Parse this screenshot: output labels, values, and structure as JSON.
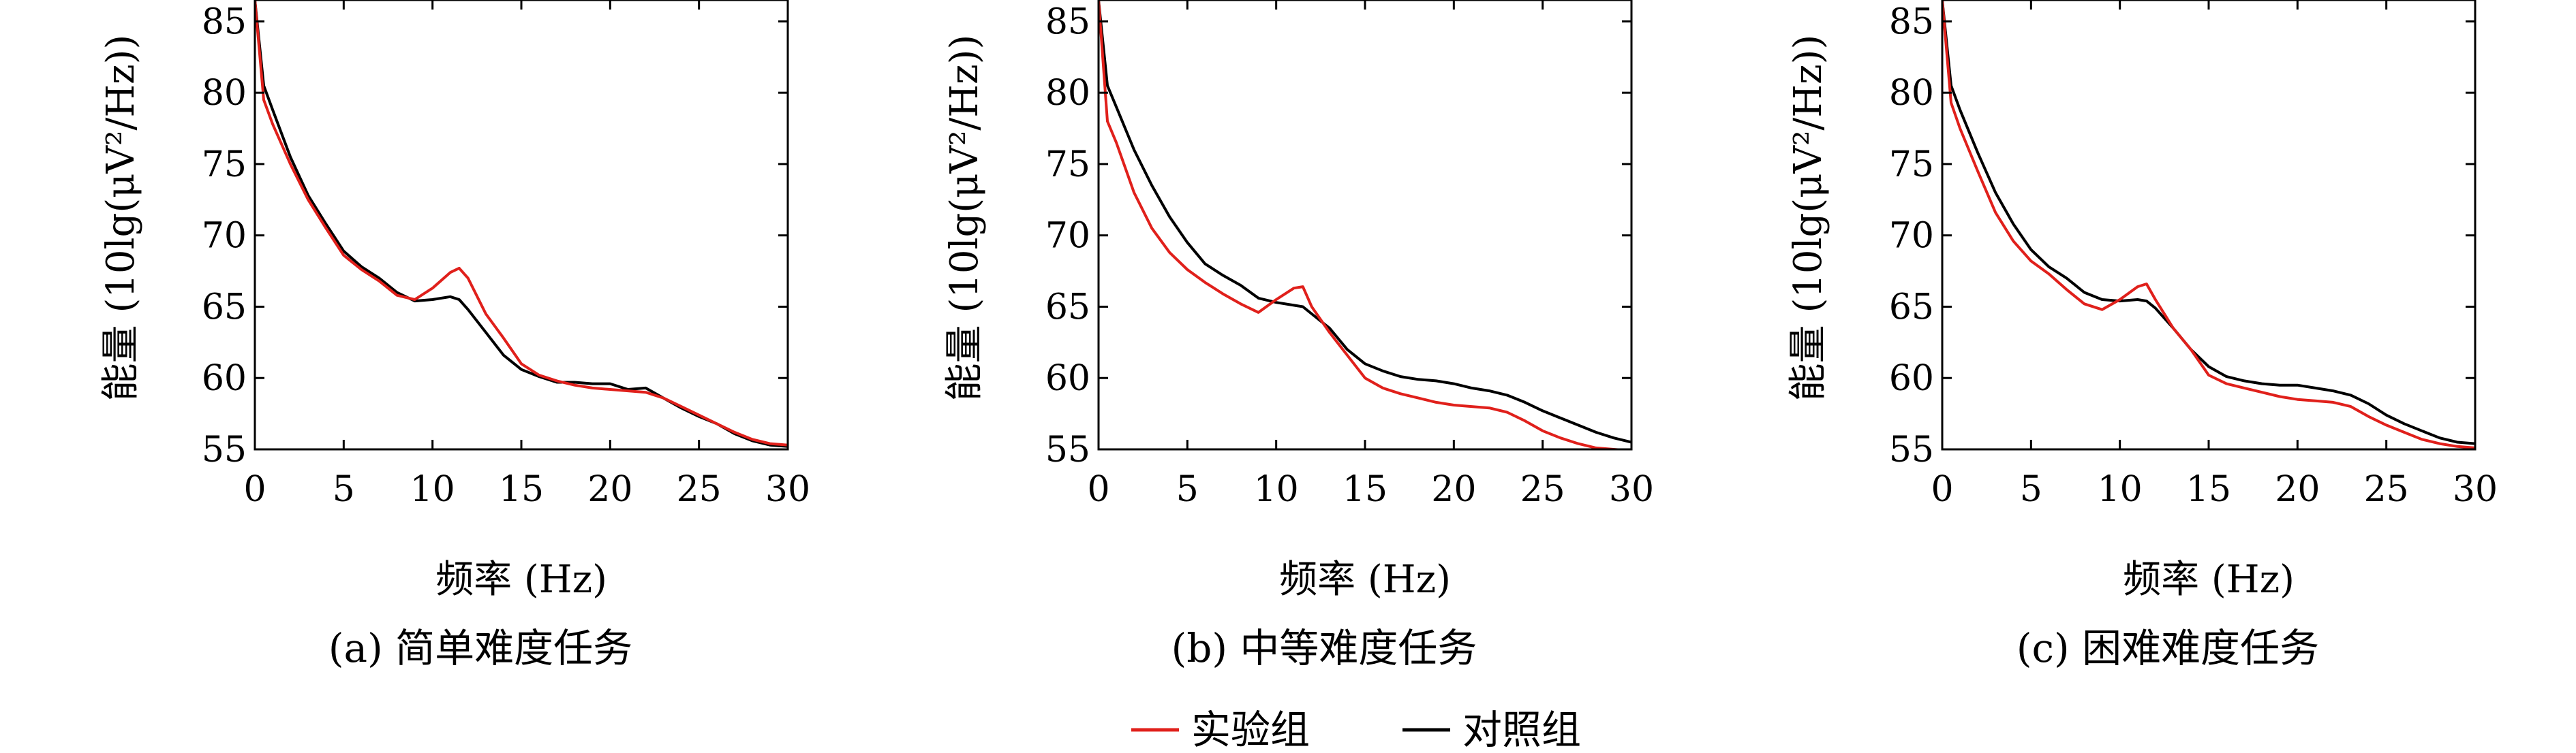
{
  "colors": {
    "experimental": "#e0201b",
    "control": "#000000"
  },
  "legend": {
    "experimental": "实验组",
    "control": "对照组"
  },
  "chart_data": [
    {
      "type": "line",
      "caption": "(a) 简单难度任务",
      "xlabel": "频率 (Hz)",
      "ylabel": "能量 (10lg(μV²/Hz))",
      "xlim": [
        0,
        30
      ],
      "ylim": [
        55,
        86.5
      ],
      "xticks": [
        "0",
        "5",
        "10",
        "15",
        "20",
        "25",
        "30"
      ],
      "yticks": [
        "55",
        "60",
        "65",
        "70",
        "75",
        "80",
        "85"
      ],
      "x": [
        0,
        0.5,
        1,
        2,
        3,
        4,
        5,
        6,
        7,
        8,
        9,
        10,
        11,
        11.5,
        12,
        13,
        14,
        15,
        16,
        17,
        18,
        19,
        20,
        21,
        22,
        23,
        24,
        25,
        26,
        27,
        28,
        29,
        30
      ],
      "series": [
        {
          "name": "实验组",
          "values": [
            86.5,
            79.5,
            77.8,
            75,
            72.5,
            70.5,
            68.6,
            67.6,
            66.8,
            65.8,
            65.5,
            66.3,
            67.4,
            67.7,
            67,
            64.5,
            62.8,
            61,
            60.2,
            59.8,
            59.5,
            59.3,
            59.2,
            59.1,
            59,
            58.6,
            58,
            57.4,
            56.8,
            56.2,
            55.7,
            55.4,
            55.3
          ]
        },
        {
          "name": "对照组",
          "values": [
            86.5,
            80.5,
            78.8,
            75.5,
            72.8,
            70.8,
            68.9,
            67.8,
            67,
            66,
            65.4,
            65.5,
            65.7,
            65.5,
            64.8,
            63.2,
            61.6,
            60.6,
            60.1,
            59.7,
            59.7,
            59.6,
            59.6,
            59.2,
            59.3,
            58.6,
            57.9,
            57.3,
            56.8,
            56.1,
            55.6,
            55.3,
            55.2
          ]
        }
      ]
    },
    {
      "type": "line",
      "caption": "(b) 中等难度任务",
      "xlabel": "频率 (Hz)",
      "ylabel": "能量 (10lg(μV²/Hz))",
      "xlim": [
        0,
        30
      ],
      "ylim": [
        55,
        86.5
      ],
      "xticks": [
        "0",
        "5",
        "10",
        "15",
        "20",
        "25",
        "30"
      ],
      "yticks": [
        "55",
        "60",
        "65",
        "70",
        "75",
        "80",
        "85"
      ],
      "x": [
        0,
        0.5,
        1,
        2,
        3,
        4,
        5,
        6,
        7,
        8,
        9,
        10,
        11,
        11.5,
        12,
        13,
        14,
        15,
        16,
        17,
        18,
        19,
        20,
        21,
        22,
        23,
        24,
        25,
        26,
        27,
        28,
        29,
        30
      ],
      "series": [
        {
          "name": "实验组",
          "values": [
            86.5,
            78,
            76.5,
            73,
            70.5,
            68.8,
            67.6,
            66.7,
            65.9,
            65.2,
            64.6,
            65.5,
            66.3,
            66.4,
            65,
            63.2,
            61.6,
            60,
            59.3,
            58.9,
            58.6,
            58.3,
            58.1,
            58,
            57.9,
            57.6,
            57,
            56.3,
            55.8,
            55.4,
            55.1,
            55,
            54.9
          ]
        },
        {
          "name": "对照组",
          "values": [
            86.5,
            80.5,
            79,
            76,
            73.5,
            71.3,
            69.5,
            68,
            67.2,
            66.5,
            65.6,
            65.3,
            65.1,
            65,
            64.5,
            63.5,
            62,
            61,
            60.5,
            60.1,
            59.9,
            59.8,
            59.6,
            59.3,
            59.1,
            58.8,
            58.3,
            57.7,
            57.2,
            56.7,
            56.2,
            55.8,
            55.5
          ]
        }
      ]
    },
    {
      "type": "line",
      "caption": "(c) 困难难度任务",
      "xlabel": "频率 (Hz)",
      "ylabel": "能量 (10lg(μV²/Hz))",
      "xlim": [
        0,
        30
      ],
      "ylim": [
        55,
        86.5
      ],
      "xticks": [
        "0",
        "5",
        "10",
        "15",
        "20",
        "25",
        "30"
      ],
      "yticks": [
        "55",
        "60",
        "65",
        "70",
        "75",
        "80",
        "85"
      ],
      "x": [
        0,
        0.5,
        1,
        2,
        3,
        4,
        5,
        6,
        7,
        8,
        9,
        10,
        11,
        11.5,
        12,
        13,
        14,
        15,
        16,
        17,
        18,
        19,
        20,
        21,
        22,
        23,
        24,
        25,
        26,
        27,
        28,
        29,
        30
      ],
      "series": [
        {
          "name": "实验组",
          "values": [
            86.5,
            79.3,
            77.5,
            74.5,
            71.6,
            69.6,
            68.2,
            67.3,
            66.2,
            65.2,
            64.8,
            65.5,
            66.4,
            66.6,
            65.5,
            63.5,
            62,
            60.2,
            59.6,
            59.3,
            59,
            58.7,
            58.5,
            58.4,
            58.3,
            58,
            57.3,
            56.7,
            56.2,
            55.7,
            55.4,
            55.2,
            55.1
          ]
        },
        {
          "name": "对照组",
          "values": [
            86.5,
            80.5,
            78.8,
            75.8,
            73,
            70.8,
            69,
            67.8,
            67,
            66,
            65.5,
            65.4,
            65.5,
            65.4,
            64.9,
            63.5,
            62,
            60.8,
            60.1,
            59.8,
            59.6,
            59.5,
            59.5,
            59.3,
            59.1,
            58.8,
            58.2,
            57.4,
            56.8,
            56.3,
            55.8,
            55.5,
            55.4
          ]
        }
      ]
    }
  ]
}
